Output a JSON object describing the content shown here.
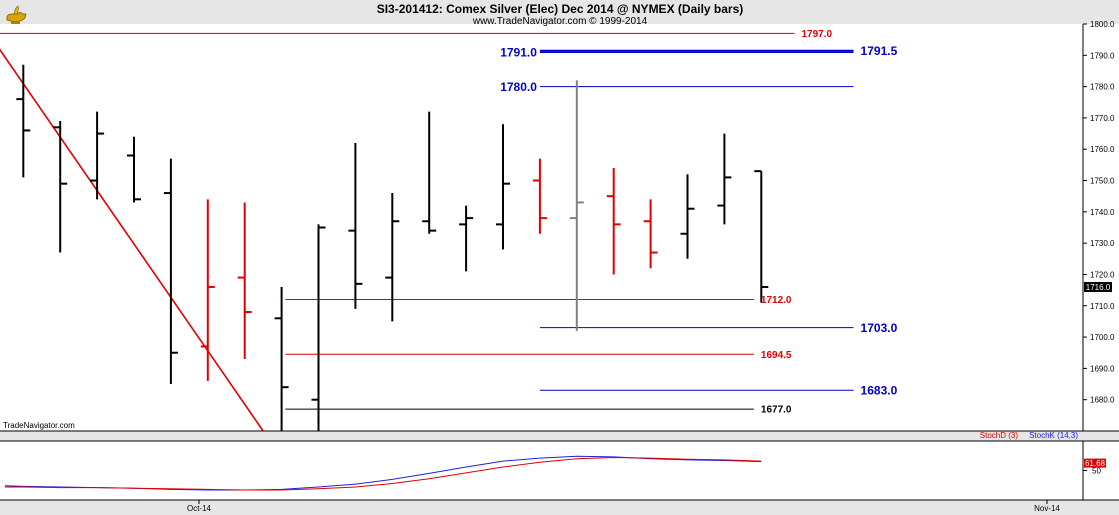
{
  "header": {
    "title": "SI3-201412:  Comex Silver (Elec) Dec 2014 @ NYMEX  (Daily bars)",
    "subtitle": "www.TradeNavigator.com © 1999-2014"
  },
  "watermark": "TradeNavigator.com",
  "logo_icon": "genie-lamp-icon",
  "colors": {
    "up_bar": "#000000",
    "down_bar": "#e00000",
    "neutral_bar": "#808080",
    "trendline": "#e00000",
    "blue_level": "#0000cc",
    "red_level": "#e00000",
    "black_level": "#000000",
    "stochK": "#2020e0",
    "stochD": "#e00000"
  },
  "chart_data": [
    {
      "type": "ohlc",
      "ylim": [
        1670,
        1800
      ],
      "y_ticks": [
        "1800.0",
        "1790.0",
        "1780.0",
        "1770.0",
        "1760.0",
        "1750.0",
        "1740.0",
        "1730.0",
        "1720.0",
        "1710.0",
        "1700.0",
        "1690.0",
        "1680.0"
      ],
      "x_labels": [
        "Oct-14",
        "Nov-14"
      ],
      "last_price": "1716.0",
      "bars": [
        {
          "o": 1776,
          "h": 1787,
          "l": 1751,
          "c": 1766,
          "color": "up"
        },
        {
          "o": 1767,
          "h": 1769,
          "l": 1727,
          "c": 1749,
          "color": "up"
        },
        {
          "o": 1750,
          "h": 1772,
          "l": 1744,
          "c": 1765,
          "color": "up"
        },
        {
          "o": 1758,
          "h": 1764,
          "l": 1743,
          "c": 1744,
          "color": "up"
        },
        {
          "o": 1746,
          "h": 1757,
          "l": 1685,
          "c": 1695,
          "color": "up"
        },
        {
          "o": 1697,
          "h": 1744,
          "l": 1686,
          "c": 1716,
          "color": "down"
        },
        {
          "o": 1719,
          "h": 1743,
          "l": 1693,
          "c": 1708,
          "color": "down"
        },
        {
          "o": 1706,
          "h": 1716,
          "l": 1670,
          "c": 1684,
          "color": "up"
        },
        {
          "o": 1680,
          "h": 1736,
          "l": 1670,
          "c": 1735,
          "color": "up"
        },
        {
          "o": 1734,
          "h": 1762,
          "l": 1709,
          "c": 1717,
          "color": "up"
        },
        {
          "o": 1719,
          "h": 1746,
          "l": 1705,
          "c": 1737,
          "color": "up"
        },
        {
          "o": 1737,
          "h": 1772,
          "l": 1733,
          "c": 1734,
          "color": "up"
        },
        {
          "o": 1736,
          "h": 1742,
          "l": 1721,
          "c": 1738,
          "color": "up"
        },
        {
          "o": 1736,
          "h": 1768,
          "l": 1728,
          "c": 1749,
          "color": "up"
        },
        {
          "o": 1750,
          "h": 1757,
          "l": 1733,
          "c": 1738,
          "color": "down"
        },
        {
          "o": 1738,
          "h": 1782,
          "l": 1702,
          "c": 1743,
          "color": "neutral"
        },
        {
          "o": 1745,
          "h": 1754,
          "l": 1720,
          "c": 1736,
          "color": "down"
        },
        {
          "o": 1737,
          "h": 1744,
          "l": 1722,
          "c": 1727,
          "color": "down"
        },
        {
          "o": 1733,
          "h": 1752,
          "l": 1725,
          "c": 1741,
          "color": "up"
        },
        {
          "o": 1742,
          "h": 1765,
          "l": 1736,
          "c": 1751,
          "color": "up"
        },
        {
          "o": 1753,
          "h": 1753,
          "l": 1711,
          "c": 1716,
          "color": "up"
        }
      ],
      "trendline": {
        "from": {
          "bar": -1,
          "price": 1798
        },
        "to": {
          "bar": 6.5,
          "price": 1670
        }
      },
      "levels": [
        {
          "price": 1797.0,
          "label": "1797.0",
          "color": "red",
          "start_bar": -1.5,
          "end_bar": 20.9,
          "label_side": "end"
        },
        {
          "price": 1791.0,
          "label": "1791.0",
          "color": "blue",
          "start_bar": 14,
          "end_bar": 22.5,
          "label_side": "start"
        },
        {
          "price": 1791.5,
          "label": "1791.5",
          "color": "blue",
          "start_bar": 14,
          "end_bar": 22.5,
          "label_side": "end"
        },
        {
          "price": 1780.0,
          "label": "1780.0",
          "color": "blue",
          "start_bar": 14,
          "end_bar": 22.5,
          "label_side": "start"
        },
        {
          "price": 1712.0,
          "label": "1712.0",
          "color": "red",
          "start_bar": 7.1,
          "end_bar": 19.8,
          "label_side": "end"
        },
        {
          "price": 1703.0,
          "label": "1703.0",
          "color": "blue",
          "start_bar": 14,
          "end_bar": 22.5,
          "label_side": "end"
        },
        {
          "price": 1694.5,
          "label": "1694.5",
          "color": "red",
          "start_bar": 7.1,
          "end_bar": 19.8,
          "label_side": "end"
        },
        {
          "price": 1683.0,
          "label": "1683.0",
          "color": "blue",
          "start_bar": 14,
          "end_bar": 22.5,
          "label_side": "end"
        },
        {
          "price": 1677.0,
          "label": "1677.0",
          "color": "black",
          "start_bar": 7.1,
          "end_bar": 19.8,
          "label_side": "end"
        }
      ]
    },
    {
      "type": "line",
      "ylim": [
        0,
        100
      ],
      "y_ticks": [
        "50"
      ],
      "last_value": "61.68",
      "legend": {
        "d": "StochD (3)",
        "k": "StochK (14,3)"
      },
      "series": [
        {
          "key": "k",
          "values": [
            [
              -0.5,
              24
            ],
            [
              0,
              23
            ],
            [
              1,
              22
            ],
            [
              2,
              21
            ],
            [
              3,
              20
            ],
            [
              4,
              18
            ],
            [
              5,
              17
            ],
            [
              6,
              17
            ],
            [
              7,
              18
            ],
            [
              8,
              22
            ],
            [
              9,
              27
            ],
            [
              10,
              35
            ],
            [
              11,
              45
            ],
            [
              12,
              56
            ],
            [
              13,
              66
            ],
            [
              14,
              71
            ],
            [
              15,
              74
            ],
            [
              16,
              73
            ],
            [
              17,
              70
            ],
            [
              18,
              68
            ],
            [
              19,
              67
            ],
            [
              20,
              65
            ]
          ]
        },
        {
          "key": "d",
          "values": [
            [
              -0.5,
              22
            ],
            [
              0,
              22
            ],
            [
              1,
              21
            ],
            [
              2,
              21
            ],
            [
              3,
              20
            ],
            [
              4,
              19
            ],
            [
              5,
              18
            ],
            [
              6,
              17
            ],
            [
              7,
              17
            ],
            [
              8,
              19
            ],
            [
              9,
              22
            ],
            [
              10,
              28
            ],
            [
              11,
              36
            ],
            [
              12,
              46
            ],
            [
              13,
              56
            ],
            [
              14,
              64
            ],
            [
              15,
              70
            ],
            [
              16,
              72
            ],
            [
              17,
              71
            ],
            [
              18,
              69
            ],
            [
              19,
              68
            ],
            [
              20,
              66
            ]
          ]
        }
      ]
    }
  ]
}
